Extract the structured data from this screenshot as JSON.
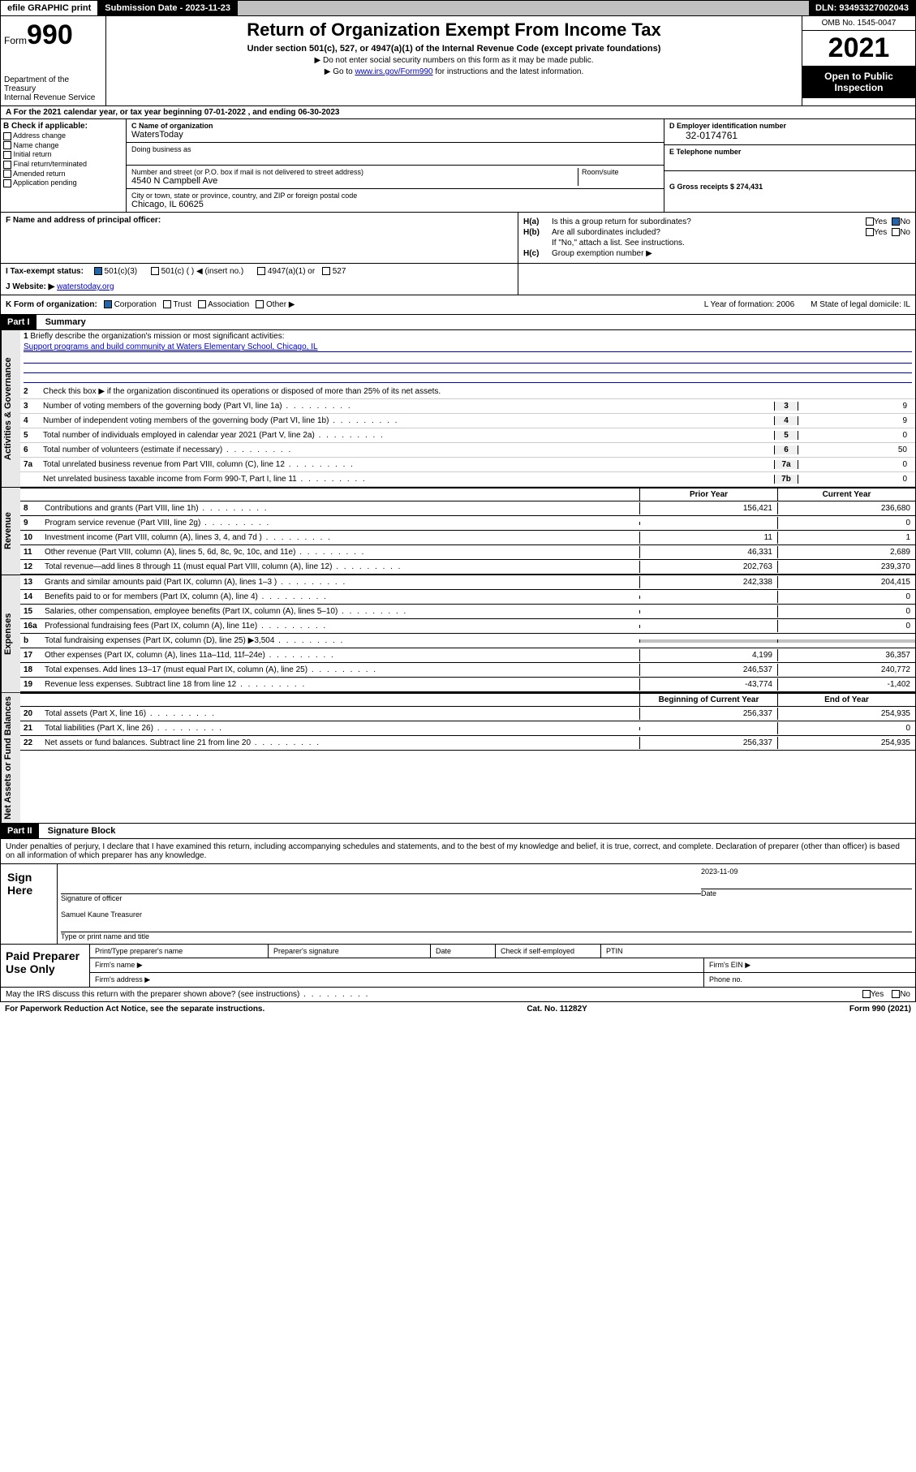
{
  "topbar": {
    "efile": "efile GRAPHIC print",
    "subdate_label": "Submission Date - 2023-11-23",
    "dln": "DLN: 93493327002043"
  },
  "header": {
    "form_prefix": "Form",
    "form_num": "990",
    "title": "Return of Organization Exempt From Income Tax",
    "sub": "Under section 501(c), 527, or 4947(a)(1) of the Internal Revenue Code (except private foundations)",
    "note1": "▶ Do not enter social security numbers on this form as it may be made public.",
    "note2_pre": "▶ Go to ",
    "note2_link": "www.irs.gov/Form990",
    "note2_post": " for instructions and the latest information.",
    "dept": "Department of the Treasury\nInternal Revenue Service",
    "omb": "OMB No. 1545-0047",
    "year": "2021",
    "open": "Open to Public Inspection"
  },
  "row_a": "A   For the 2021 calendar year, or tax year beginning 07-01-2022   , and ending 06-30-2023",
  "entity": {
    "b_label": "B Check if applicable:",
    "checks": [
      "Address change",
      "Name change",
      "Initial return",
      "Final return/terminated",
      "Amended return",
      "Application pending"
    ],
    "c_name_lbl": "C Name of organization",
    "c_name": "WatersToday",
    "dba_lbl": "Doing business as",
    "addr_lbl": "Number and street (or P.O. box if mail is not delivered to street address)",
    "room_lbl": "Room/suite",
    "addr": "4540 N Campbell Ave",
    "city_lbl": "City or town, state or province, country, and ZIP or foreign postal code",
    "city": "Chicago, IL  60625",
    "d_lbl": "D Employer identification number",
    "d_val": "32-0174761",
    "e_lbl": "E Telephone number",
    "g_lbl": "G Gross receipts $ 274,431"
  },
  "fgh": {
    "f_lbl": "F Name and address of principal officer:",
    "ha_lbl": "H(a)",
    "ha_txt": "Is this a group return for subordinates?",
    "hb_lbl": "H(b)",
    "hb_txt": "Are all subordinates included?",
    "hb_note": "If \"No,\" attach a list. See instructions.",
    "hc_lbl": "H(c)",
    "hc_txt": "Group exemption number ▶",
    "yes": "Yes",
    "no": "No"
  },
  "ij": {
    "i_lbl": "I   Tax-exempt status:",
    "i_501c3": "501(c)(3)",
    "i_501c": "501(c) (  ) ◀ (insert no.)",
    "i_4947": "4947(a)(1) or",
    "i_527": "527",
    "j_lbl": "J   Website: ▶",
    "j_val": "waterstoday.org"
  },
  "kl": {
    "k_lbl": "K Form of organization:",
    "k_corp": "Corporation",
    "k_trust": "Trust",
    "k_assoc": "Association",
    "k_other": "Other ▶",
    "l_lbl": "L Year of formation: 2006",
    "m_lbl": "M State of legal domicile: IL"
  },
  "parts": {
    "p1": "Part I",
    "p1_title": "Summary",
    "p2": "Part II",
    "p2_title": "Signature Block"
  },
  "vtabs": {
    "gov": "Activities & Governance",
    "rev": "Revenue",
    "exp": "Expenses",
    "net": "Net Assets or Fund Balances"
  },
  "summary": {
    "l1": "Briefly describe the organization's mission or most significant activities:",
    "l1_val": "Support programs and build community at Waters Elementary School, Chicago, IL",
    "l2": "Check this box ▶        if the organization discontinued its operations or disposed of more than 25% of its net assets.",
    "l3": "Number of voting members of the governing body (Part VI, line 1a)",
    "l4": "Number of independent voting members of the governing body (Part VI, line 1b)",
    "l5": "Total number of individuals employed in calendar year 2021 (Part V, line 2a)",
    "l6": "Total number of volunteers (estimate if necessary)",
    "l7a": "Total unrelated business revenue from Part VIII, column (C), line 12",
    "l7b": "Net unrelated business taxable income from Form 990-T, Part I, line 11",
    "v3": "9",
    "v4": "9",
    "v5": "0",
    "v6": "50",
    "v7a": "0",
    "v7b": "0"
  },
  "twocol": {
    "prior": "Prior Year",
    "current": "Current Year",
    "begin": "Beginning of Current Year",
    "end": "End of Year"
  },
  "revenue": [
    {
      "n": "8",
      "t": "Contributions and grants (Part VIII, line 1h)",
      "p": "156,421",
      "c": "236,680"
    },
    {
      "n": "9",
      "t": "Program service revenue (Part VIII, line 2g)",
      "p": "",
      "c": "0"
    },
    {
      "n": "10",
      "t": "Investment income (Part VIII, column (A), lines 3, 4, and 7d )",
      "p": "11",
      "c": "1"
    },
    {
      "n": "11",
      "t": "Other revenue (Part VIII, column (A), lines 5, 6d, 8c, 9c, 10c, and 11e)",
      "p": "46,331",
      "c": "2,689"
    },
    {
      "n": "12",
      "t": "Total revenue—add lines 8 through 11 (must equal Part VIII, column (A), line 12)",
      "p": "202,763",
      "c": "239,370"
    }
  ],
  "expenses": [
    {
      "n": "13",
      "t": "Grants and similar amounts paid (Part IX, column (A), lines 1–3 )",
      "p": "242,338",
      "c": "204,415"
    },
    {
      "n": "14",
      "t": "Benefits paid to or for members (Part IX, column (A), line 4)",
      "p": "",
      "c": "0"
    },
    {
      "n": "15",
      "t": "Salaries, other compensation, employee benefits (Part IX, column (A), lines 5–10)",
      "p": "",
      "c": "0"
    },
    {
      "n": "16a",
      "t": "Professional fundraising fees (Part IX, column (A), line 11e)",
      "p": "",
      "c": "0"
    },
    {
      "n": "b",
      "t": "Total fundraising expenses (Part IX, column (D), line 25) ▶3,504",
      "p": "grey",
      "c": "grey"
    },
    {
      "n": "17",
      "t": "Other expenses (Part IX, column (A), lines 11a–11d, 11f–24e)",
      "p": "4,199",
      "c": "36,357"
    },
    {
      "n": "18",
      "t": "Total expenses. Add lines 13–17 (must equal Part IX, column (A), line 25)",
      "p": "246,537",
      "c": "240,772"
    },
    {
      "n": "19",
      "t": "Revenue less expenses. Subtract line 18 from line 12",
      "p": "-43,774",
      "c": "-1,402"
    }
  ],
  "netassets": [
    {
      "n": "20",
      "t": "Total assets (Part X, line 16)",
      "p": "256,337",
      "c": "254,935"
    },
    {
      "n": "21",
      "t": "Total liabilities (Part X, line 26)",
      "p": "",
      "c": "0"
    },
    {
      "n": "22",
      "t": "Net assets or fund balances. Subtract line 21 from line 20",
      "p": "256,337",
      "c": "254,935"
    }
  ],
  "sig": {
    "decl": "Under penalties of perjury, I declare that I have examined this return, including accompanying schedules and statements, and to the best of my knowledge and belief, it is true, correct, and complete. Declaration of preparer (other than officer) is based on all information of which preparer has any knowledge.",
    "sign_here": "Sign Here",
    "date": "2023-11-09",
    "sig_officer": "Signature of officer",
    "date_lbl": "Date",
    "name": "Samuel Kaune  Treasurer",
    "name_lbl": "Type or print name and title"
  },
  "paid": {
    "title": "Paid Preparer Use Only",
    "pt_name": "Print/Type preparer's name",
    "pt_sig": "Preparer's signature",
    "pt_date": "Date",
    "pt_check": "Check        if self-employed",
    "ptin": "PTIN",
    "firm_name": "Firm's name    ▶",
    "firm_ein": "Firm's EIN ▶",
    "firm_addr": "Firm's address ▶",
    "phone": "Phone no."
  },
  "footer": {
    "discuss": "May the IRS discuss this return with the preparer shown above? (see instructions)",
    "yes": "Yes",
    "no": "No",
    "pra": "For Paperwork Reduction Act Notice, see the separate instructions.",
    "cat": "Cat. No. 11282Y",
    "form": "Form 990 (2021)"
  },
  "colors": {
    "bg": "#ffffff",
    "border": "#000000",
    "link": "#0000cc",
    "grey": "#c0c0c0",
    "header_black": "#000000",
    "check_blue": "#2266aa"
  }
}
